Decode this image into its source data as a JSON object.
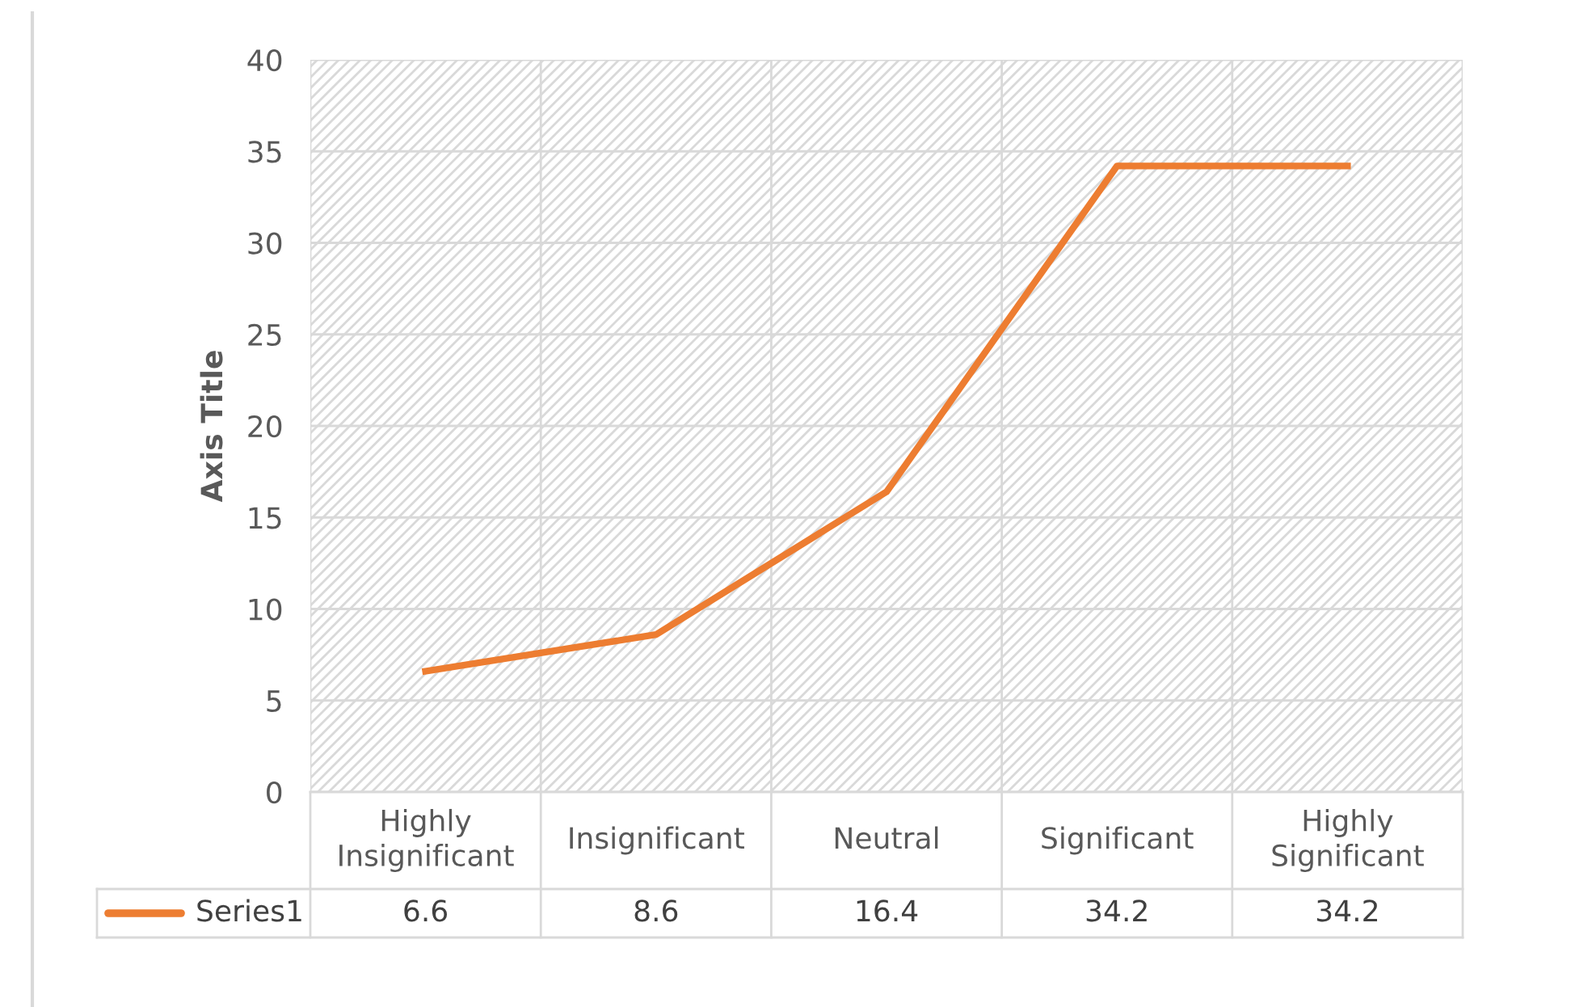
{
  "chart_data": {
    "type": "line",
    "ylabel": "Axis Title",
    "categories": [
      "Highly\nInsignificant",
      "Insignificant",
      "Neutral",
      "Significant",
      "Highly\nSignificant"
    ],
    "series": [
      {
        "name": "Series1",
        "color": "#ed7d31",
        "values": [
          6.6,
          8.6,
          16.4,
          34.2,
          34.2
        ]
      }
    ],
    "ylim": [
      0,
      40
    ],
    "yticks": [
      0,
      5,
      10,
      15,
      20,
      25,
      30,
      35,
      40
    ],
    "grid": true,
    "data_labels": true,
    "marker": "none",
    "line_style": "solid"
  }
}
